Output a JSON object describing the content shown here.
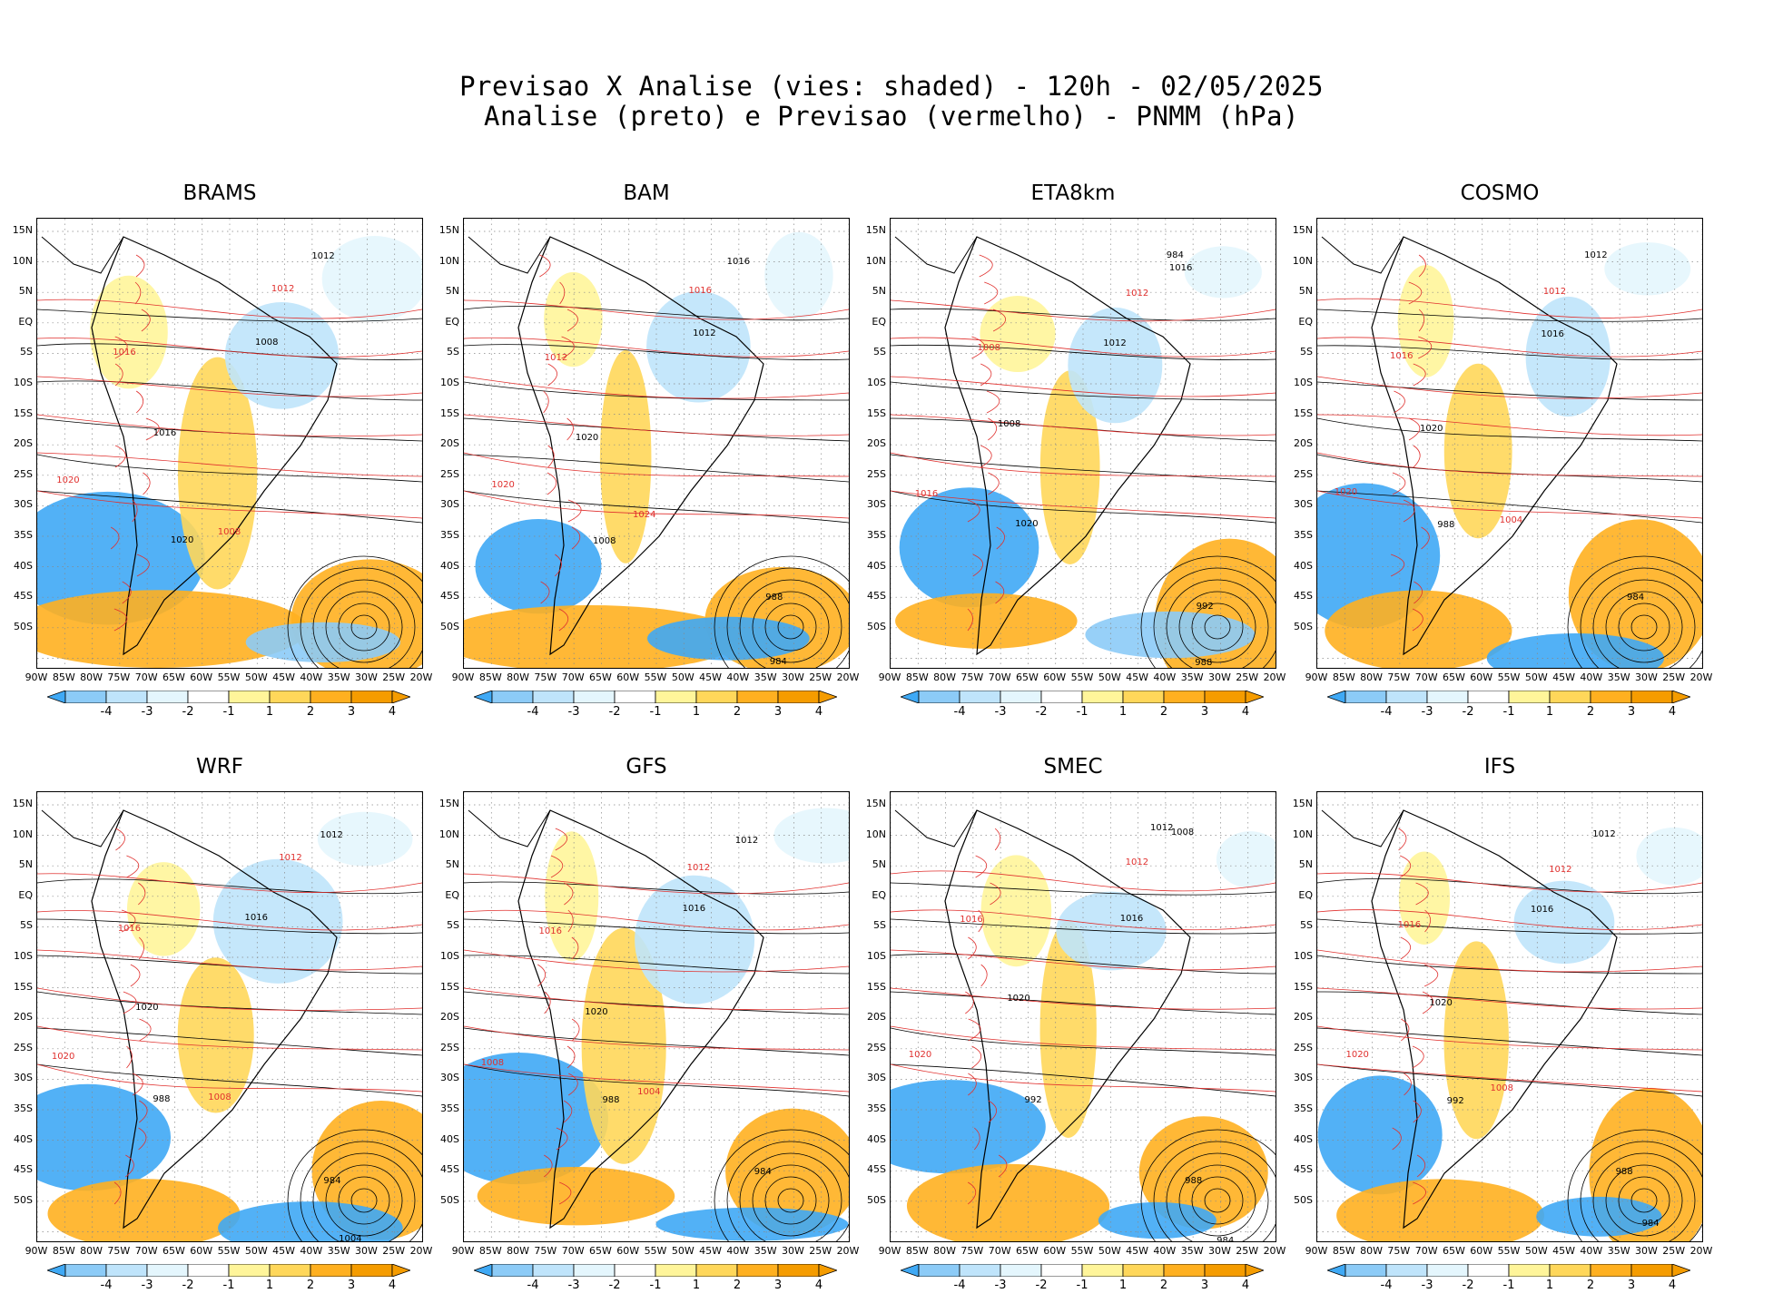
{
  "header": {
    "line1": "Previsao X Analise (vies: shaded) - 120h - 02/05/2025",
    "line2": "Analise (preto) e Previsao (vermelho) - PNMM (hPa)"
  },
  "y_ticks": [
    "15N",
    "10N",
    "5N",
    "EQ",
    "5S",
    "10S",
    "15S",
    "20S",
    "25S",
    "30S",
    "35S",
    "40S",
    "45S",
    "50S"
  ],
  "x_ticks": [
    "90W",
    "85W",
    "80W",
    "75W",
    "70W",
    "65W",
    "60W",
    "55W",
    "50W",
    "45W",
    "40W",
    "35W",
    "30W",
    "25W",
    "20W"
  ],
  "colorbar": {
    "labels": [
      "-4",
      "-3",
      "-2",
      "-1",
      "1",
      "2",
      "3",
      "4"
    ],
    "colors": [
      "#3fa9f5",
      "#8ccbf7",
      "#bfe4fb",
      "#e4f6fd",
      "#ffffff",
      "#fff59a",
      "#ffd75a",
      "#ffb020",
      "#f59c00"
    ]
  },
  "chart_data": [
    {
      "type": "contour-map",
      "title": "BRAMS",
      "black_labels": [
        "1012",
        "1008",
        "1016",
        "1020"
      ],
      "red_labels": [
        "1012",
        "1016",
        "1020",
        "1008"
      ]
    },
    {
      "type": "contour-map",
      "title": "BAM",
      "black_labels": [
        "1016",
        "1012",
        "1020",
        "1008",
        "988",
        "984"
      ],
      "red_labels": [
        "1016",
        "1012",
        "1020",
        "1024"
      ]
    },
    {
      "type": "contour-map",
      "title": "ETA8km",
      "black_labels": [
        "1016",
        "1012",
        "1008",
        "1020",
        "992",
        "988",
        "984"
      ],
      "red_labels": [
        "1012",
        "1008",
        "1016"
      ]
    },
    {
      "type": "contour-map",
      "title": "COSMO",
      "black_labels": [
        "1012",
        "1016",
        "1020",
        "988",
        "984"
      ],
      "red_labels": [
        "1012",
        "1016",
        "1020",
        "1004"
      ]
    },
    {
      "type": "contour-map",
      "title": "WRF",
      "black_labels": [
        "1012",
        "1016",
        "1020",
        "988",
        "984",
        "1004"
      ],
      "red_labels": [
        "1012",
        "1016",
        "1020",
        "1008"
      ]
    },
    {
      "type": "contour-map",
      "title": "GFS",
      "black_labels": [
        "1012",
        "1016",
        "1020",
        "988",
        "984"
      ],
      "red_labels": [
        "1012",
        "1016",
        "1008",
        "1004"
      ]
    },
    {
      "type": "contour-map",
      "title": "SMEC",
      "black_labels": [
        "1012",
        "1016",
        "1020",
        "992",
        "988",
        "984",
        "1008"
      ],
      "red_labels": [
        "1012",
        "1016",
        "1020"
      ]
    },
    {
      "type": "contour-map",
      "title": "IFS",
      "black_labels": [
        "1012",
        "1016",
        "1020",
        "992",
        "988",
        "984"
      ],
      "red_labels": [
        "1012",
        "1016",
        "1020",
        "1008"
      ]
    }
  ]
}
